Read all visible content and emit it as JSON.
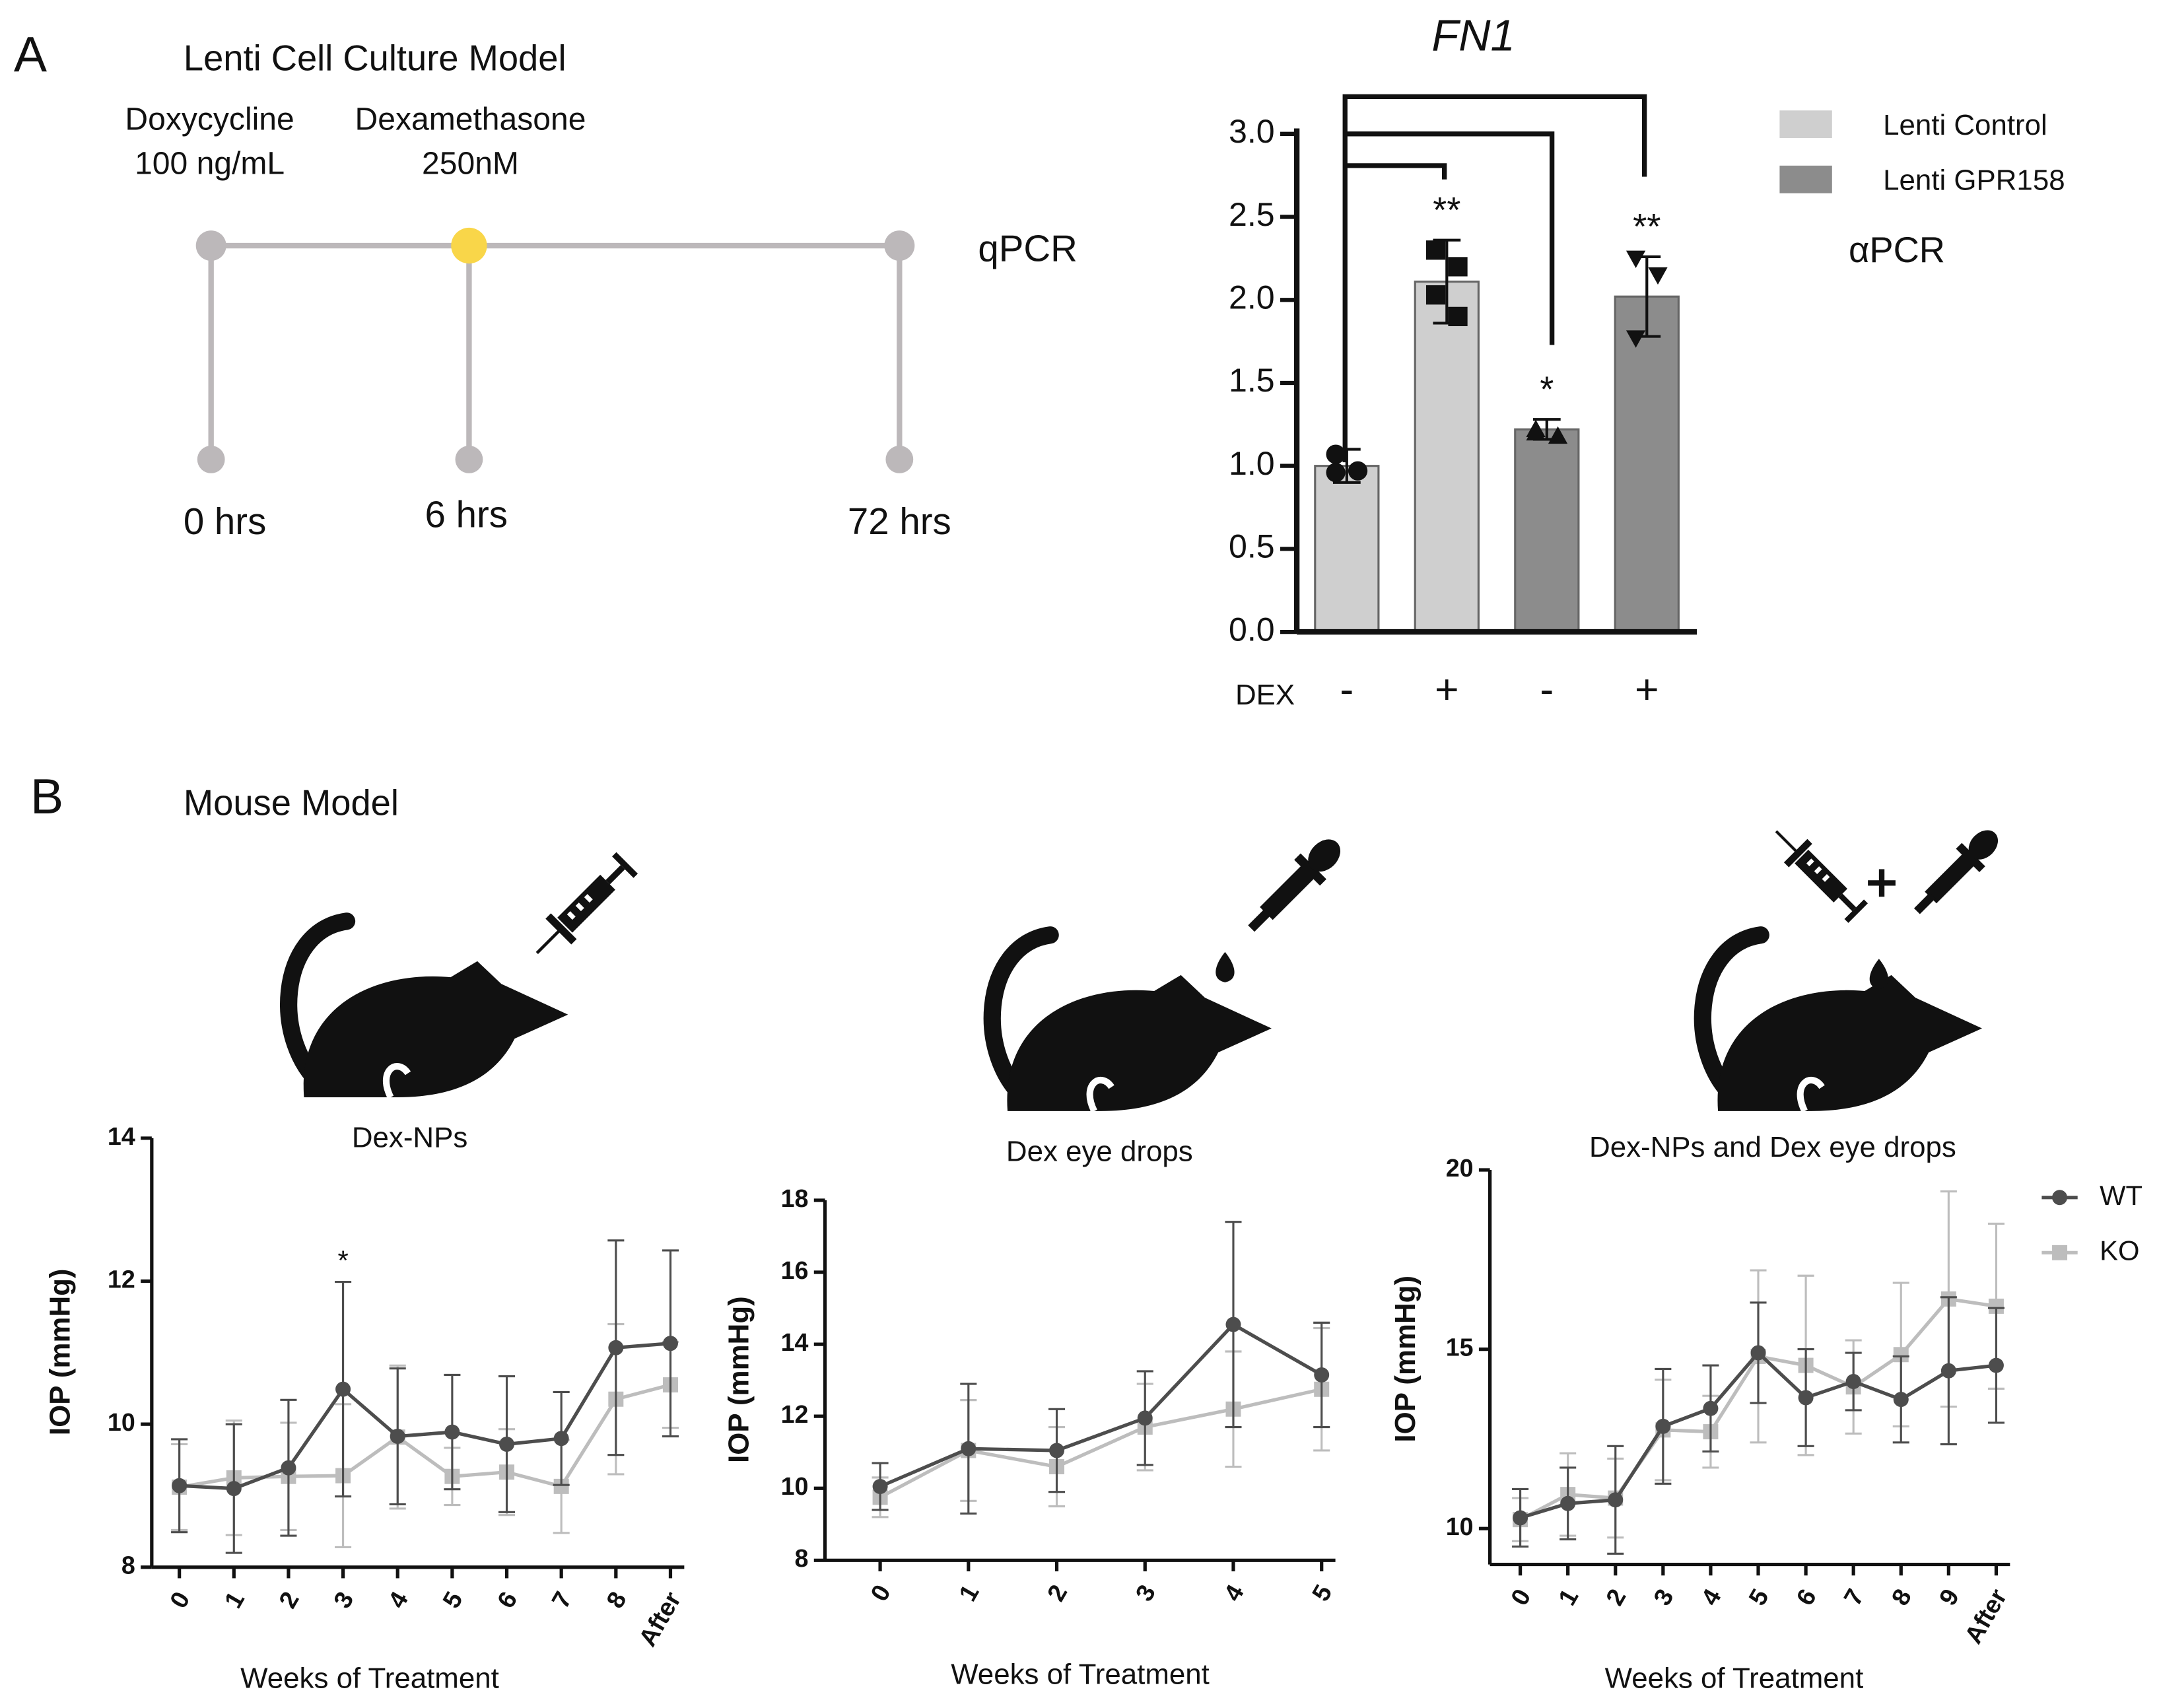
{
  "panel_a": {
    "label": "A",
    "title": "Lenti Cell Culture Model",
    "treatments": [
      {
        "name": "Doxycycline",
        "dose": "100 ng/mL"
      },
      {
        "name": "Dexamethasone",
        "dose": "250nM"
      }
    ],
    "readout": "qPCR",
    "timepoints": [
      "0 hrs",
      "6 hrs",
      "72 hrs"
    ]
  },
  "panel_b": {
    "label": "B",
    "title": "Mouse Model"
  },
  "chart_data": [
    {
      "type": "bar",
      "title": "FN1",
      "xlabel": "DEX",
      "annotation": "αPCR",
      "categories": [
        "-",
        "+",
        "-",
        "+"
      ],
      "series": [
        {
          "name": "Lenti Control",
          "color": "#cfcfcf",
          "values": [
            1.0,
            2.11,
            null,
            null
          ],
          "errors": [
            0.1,
            0.25,
            null,
            null
          ],
          "points": [
            [
              1.07,
              0.97,
              0.96
            ],
            [
              2.3,
              2.2,
              2.03,
              1.9
            ],
            null,
            null
          ]
        },
        {
          "name": "Lenti GPR158",
          "color": "#8c8c8c",
          "values": [
            null,
            null,
            1.22,
            2.02
          ],
          "errors": [
            null,
            null,
            0.06,
            0.24
          ],
          "points": [
            null,
            null,
            [
              1.22,
              1.18,
              1.2
            ],
            [
              2.25,
              2.15,
              1.77
            ]
          ]
        }
      ],
      "point_markers": [
        "circle",
        "square",
        "triangle",
        "triangle-down"
      ],
      "significance": [
        null,
        "**",
        "*",
        "**"
      ],
      "ylim": [
        0,
        3.0
      ],
      "yticks": [
        {
          "value": 0,
          "label": "0.0"
        },
        0.5,
        {
          "value": 1,
          "label": "1.0"
        },
        1.5,
        {
          "value": 2,
          "label": "2.0"
        },
        2.5,
        {
          "value": 3,
          "label": "3.0"
        }
      ]
    },
    {
      "type": "line",
      "title": "Dex-NPs",
      "xlabel": "Weeks of Treatment",
      "ylabel": "IOP (mmHg)",
      "categories": [
        "0",
        "1",
        "2",
        "3",
        "4",
        "5",
        "6",
        "7",
        "8",
        "After"
      ],
      "series": [
        {
          "name": "WT",
          "color": "#4d4d4d",
          "marker": "circle",
          "values": [
            9.14,
            9.1,
            9.39,
            10.49,
            9.83,
            9.89,
            9.72,
            9.8,
            11.07,
            11.13
          ],
          "errors": [
            0.65,
            0.9,
            0.95,
            1.5,
            0.95,
            0.8,
            0.95,
            0.65,
            1.5,
            1.3
          ]
        },
        {
          "name": "KO",
          "color": "#bdbdbd",
          "marker": "square",
          "values": [
            9.12,
            9.25,
            9.27,
            9.28,
            9.82,
            9.27,
            9.33,
            9.13,
            10.35,
            10.55
          ],
          "errors": [
            0.6,
            0.8,
            0.75,
            1.0,
            1.0,
            0.4,
            0.6,
            0.65,
            1.05,
            0.6
          ]
        }
      ],
      "significance": [
        null,
        null,
        null,
        "*",
        null,
        null,
        null,
        null,
        null,
        null
      ],
      "ylim": [
        8,
        14
      ],
      "yticks": [
        8,
        10,
        12,
        14
      ]
    },
    {
      "type": "line",
      "title": "Dex eye drops",
      "xlabel": "Weeks of Treatment",
      "ylabel": "IOP (mmHg)",
      "categories": [
        "0",
        "1",
        "2",
        "3",
        "4",
        "5"
      ],
      "series": [
        {
          "name": "WT",
          "color": "#4d4d4d",
          "marker": "circle",
          "values": [
            10.05,
            11.1,
            11.05,
            11.95,
            14.55,
            13.15
          ],
          "errors": [
            0.65,
            1.8,
            1.15,
            1.3,
            2.85,
            1.45
          ]
        },
        {
          "name": "KO",
          "color": "#bdbdbd",
          "marker": "square",
          "values": [
            9.75,
            11.05,
            10.6,
            11.7,
            12.2,
            12.75
          ],
          "errors": [
            0.55,
            1.4,
            1.1,
            1.2,
            1.6,
            1.7
          ]
        }
      ],
      "ylim": [
        8,
        18
      ],
      "yticks": [
        8,
        10,
        12,
        14,
        16,
        18
      ]
    },
    {
      "type": "line",
      "title": "Dex-NPs and Dex eye drops",
      "xlabel": "Weeks of Treatment",
      "ylabel": "IOP (mmHg)",
      "categories": [
        "0",
        "1",
        "2",
        "3",
        "4",
        "5",
        "6",
        "7",
        "8",
        "9",
        "After"
      ],
      "series": [
        {
          "name": "WT",
          "color": "#4d4d4d",
          "marker": "circle",
          "values": [
            10.3,
            10.7,
            10.8,
            12.85,
            13.35,
            14.9,
            13.65,
            14.1,
            13.6,
            14.4,
            14.55
          ],
          "errors": [
            0.8,
            1.0,
            1.5,
            1.6,
            1.2,
            1.4,
            1.35,
            0.8,
            1.2,
            2.05,
            1.6
          ]
        },
        {
          "name": "KO",
          "color": "#bdbdbd",
          "marker": "square",
          "values": [
            10.25,
            10.95,
            10.85,
            12.75,
            12.7,
            14.8,
            14.55,
            13.95,
            14.85,
            16.4,
            16.2
          ],
          "errors": [
            0.6,
            1.15,
            1.1,
            1.4,
            1.0,
            2.4,
            2.5,
            1.3,
            2.0,
            3.0,
            2.3
          ]
        }
      ],
      "legend": "right",
      "ylim": [
        9,
        20
      ],
      "yticks": [
        10,
        15,
        20
      ]
    }
  ]
}
